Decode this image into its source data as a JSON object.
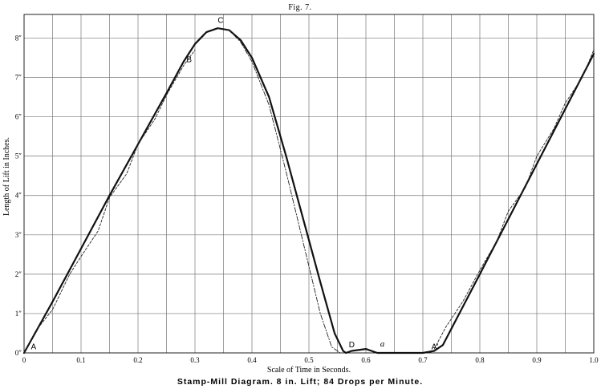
{
  "figure_label": "Fig. 7.",
  "caption": "Stamp-Mill Diagram. 8 in. Lift; 84 Drops per Minute.",
  "chart_data": {
    "type": "line",
    "xlabel": "Scale of Time in Seconds.",
    "ylabel": "Length of Lift in Inches.",
    "xlim": [
      0,
      1.0
    ],
    "ylim": [
      0,
      8.6
    ],
    "grid": true,
    "x_ticks": [
      {
        "value": 0.0,
        "label": "0"
      },
      {
        "value": 0.1,
        "label": "0.1"
      },
      {
        "value": 0.2,
        "label": "0.2"
      },
      {
        "value": 0.3,
        "label": "0.3"
      },
      {
        "value": 0.4,
        "label": "0.4"
      },
      {
        "value": 0.5,
        "label": "0.5"
      },
      {
        "value": 0.6,
        "label": "0.6"
      },
      {
        "value": 0.7,
        "label": "0.7"
      },
      {
        "value": 0.8,
        "label": "0.8"
      },
      {
        "value": 0.9,
        "label": "0.9"
      },
      {
        "value": 1.0,
        "label": "1.0"
      }
    ],
    "y_ticks": [
      {
        "value": 0,
        "label": "0″"
      },
      {
        "value": 1,
        "label": "1″"
      },
      {
        "value": 2,
        "label": "2″"
      },
      {
        "value": 3,
        "label": "3″"
      },
      {
        "value": 4,
        "label": "4″"
      },
      {
        "value": 5,
        "label": "5″"
      },
      {
        "value": 6,
        "label": "6″"
      },
      {
        "value": 7,
        "label": "7″"
      },
      {
        "value": 8,
        "label": "8″"
      }
    ],
    "series": [
      {
        "style": "solid",
        "x": [
          0.0,
          0.05,
          0.1,
          0.15,
          0.2,
          0.25,
          0.28,
          0.3,
          0.32,
          0.34,
          0.36,
          0.38,
          0.4,
          0.43,
          0.46,
          0.49,
          0.52,
          0.545,
          0.56,
          0.565,
          0.575,
          0.6,
          0.62,
          0.7,
          0.72,
          0.735,
          0.8,
          0.9,
          1.0
        ],
        "y": [
          0.0,
          1.3,
          2.65,
          4.0,
          5.3,
          6.6,
          7.4,
          7.85,
          8.15,
          8.25,
          8.2,
          7.95,
          7.5,
          6.5,
          5.0,
          3.4,
          1.8,
          0.5,
          0.05,
          0.0,
          0.05,
          0.1,
          0.0,
          0.0,
          0.05,
          0.2,
          2.0,
          4.8,
          7.6
        ]
      },
      {
        "style": "dashed",
        "x": [
          0.0,
          0.02,
          0.05,
          0.08,
          0.1,
          0.13,
          0.15,
          0.18,
          0.2,
          0.23,
          0.25,
          0.28,
          0.3,
          0.72,
          0.74,
          0.77,
          0.8,
          0.83,
          0.85,
          0.88,
          0.9,
          0.93,
          0.95,
          0.98,
          1.0
        ],
        "y": [
          0.0,
          0.55,
          1.1,
          2.0,
          2.45,
          3.1,
          3.95,
          4.55,
          5.3,
          5.95,
          6.55,
          7.3,
          7.7,
          0.1,
          0.65,
          1.3,
          2.1,
          2.85,
          3.6,
          4.2,
          5.0,
          5.7,
          6.35,
          7.0,
          7.7
        ]
      },
      {
        "style": "dash-dot",
        "x": [
          0.34,
          0.36,
          0.38,
          0.4,
          0.43,
          0.46,
          0.49,
          0.52,
          0.54,
          0.555
        ],
        "y": [
          8.25,
          8.2,
          7.9,
          7.4,
          6.3,
          4.6,
          2.8,
          1.0,
          0.15,
          0.0
        ]
      }
    ],
    "annotations": [
      {
        "text": "A",
        "x": 0.012,
        "y": 0.05,
        "style": "upright"
      },
      {
        "text": "B",
        "x": 0.285,
        "y": 7.35,
        "style": "upright"
      },
      {
        "text": "C",
        "x": 0.34,
        "y": 8.35,
        "style": "upright"
      },
      {
        "text": "D",
        "x": 0.57,
        "y": 0.1,
        "style": "upright"
      },
      {
        "text": "a",
        "x": 0.625,
        "y": 0.12,
        "style": "italic"
      },
      {
        "text": "A′",
        "x": 0.715,
        "y": 0.05,
        "style": "upright"
      }
    ]
  }
}
